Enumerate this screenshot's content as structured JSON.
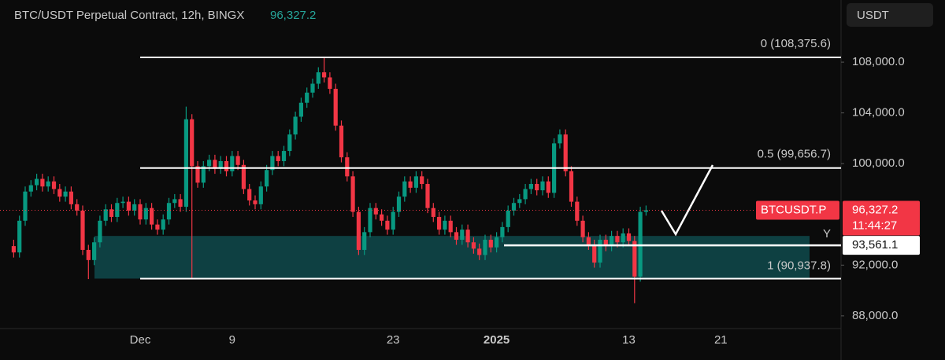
{
  "header": {
    "title": "BTC/USDT Perpetual Contract, 12h, BINGX",
    "price": "96,327.2",
    "currency_button": "USDT"
  },
  "chart_data": {
    "type": "candlestick",
    "categories": [
      null,
      null,
      null,
      null,
      null,
      null,
      null,
      null,
      null,
      null,
      null,
      null,
      null,
      null,
      null,
      null,
      null,
      null,
      null,
      null,
      null,
      null,
      "Dec",
      null,
      null,
      null,
      null,
      null,
      null,
      null,
      null,
      null,
      null,
      null,
      null,
      null,
      null,
      null,
      "9",
      null,
      null,
      null,
      null,
      null,
      null,
      null,
      null,
      null,
      null,
      null,
      null,
      null,
      null,
      null,
      null,
      null,
      null,
      null,
      null,
      null,
      null,
      null,
      null,
      null,
      null,
      null,
      "23",
      null,
      null,
      null,
      null,
      null,
      null,
      null,
      null,
      null,
      null,
      null,
      null,
      null,
      null,
      null,
      null,
      null,
      "2025",
      null,
      null,
      null,
      null,
      null,
      null,
      null,
      null,
      null,
      null,
      null,
      null,
      null,
      null,
      null,
      null,
      null,
      null,
      null,
      null,
      null,
      null,
      "13",
      null,
      null,
      null,
      null,
      null,
      null,
      null,
      null,
      null,
      null,
      null,
      null,
      null,
      null,
      null,
      "21"
    ],
    "values": [
      [
        93500,
        94000,
        92600,
        93000
      ],
      [
        93000,
        95900,
        92600,
        95500
      ],
      [
        95500,
        98200,
        95100,
        97800
      ],
      [
        97800,
        98700,
        97400,
        98300
      ],
      [
        98300,
        99200,
        97900,
        98800
      ],
      [
        98800,
        99200,
        97800,
        98200
      ],
      [
        98200,
        99000,
        97800,
        98600
      ],
      [
        98600,
        99000,
        97600,
        98000
      ],
      [
        98000,
        98400,
        97000,
        97400
      ],
      [
        97400,
        98200,
        97000,
        97800
      ],
      [
        97800,
        98200,
        96400,
        96800
      ],
      [
        96800,
        97200,
        95900,
        96300
      ],
      [
        96300,
        96700,
        92800,
        93200
      ],
      [
        93200,
        93600,
        90900,
        92400
      ],
      [
        92400,
        94200,
        92000,
        93800
      ],
      [
        93800,
        95900,
        93400,
        95500
      ],
      [
        95500,
        96800,
        95100,
        96400
      ],
      [
        96400,
        96800,
        95400,
        95800
      ],
      [
        95800,
        97300,
        95400,
        96900
      ],
      [
        96900,
        97400,
        96500,
        97000
      ],
      [
        97000,
        97400,
        95900,
        96300
      ],
      [
        96300,
        97200,
        95900,
        96800
      ],
      [
        96800,
        97200,
        95200,
        95600
      ],
      [
        95600,
        96900,
        95200,
        96500
      ],
      [
        96500,
        96900,
        94800,
        95200
      ],
      [
        95200,
        95600,
        94400,
        94800
      ],
      [
        94800,
        96000,
        94400,
        95600
      ],
      [
        95600,
        97300,
        95200,
        96900
      ],
      [
        96900,
        97600,
        96500,
        97200
      ],
      [
        97200,
        97600,
        96200,
        96600
      ],
      [
        96600,
        104500,
        96200,
        103500
      ],
      [
        103500,
        103900,
        91000,
        99800
      ],
      [
        99800,
        100200,
        98100,
        98500
      ],
      [
        98500,
        100200,
        98100,
        99800
      ],
      [
        99800,
        100700,
        99400,
        100300
      ],
      [
        100300,
        100700,
        99200,
        99600
      ],
      [
        99600,
        100600,
        99200,
        100200
      ],
      [
        100200,
        100600,
        99000,
        99400
      ],
      [
        99400,
        101000,
        99000,
        100600
      ],
      [
        100600,
        101000,
        99500,
        99900
      ],
      [
        99900,
        100300,
        97600,
        98000
      ],
      [
        98000,
        98400,
        96700,
        97100
      ],
      [
        97100,
        97500,
        96400,
        96800
      ],
      [
        96800,
        98600,
        96400,
        98200
      ],
      [
        98200,
        99900,
        97800,
        99500
      ],
      [
        99500,
        101000,
        99100,
        100600
      ],
      [
        100600,
        101000,
        99800,
        100200
      ],
      [
        100200,
        101400,
        99800,
        101000
      ],
      [
        101000,
        102700,
        100600,
        102300
      ],
      [
        102300,
        104100,
        101900,
        103700
      ],
      [
        103700,
        105200,
        103300,
        104800
      ],
      [
        104800,
        106000,
        104400,
        105600
      ],
      [
        105600,
        106700,
        105200,
        106300
      ],
      [
        106300,
        107600,
        105900,
        107200
      ],
      [
        107200,
        108375.6,
        106400,
        106800
      ],
      [
        106800,
        107200,
        105500,
        105900
      ],
      [
        105900,
        106300,
        102600,
        103000
      ],
      [
        103000,
        103400,
        100100,
        100500
      ],
      [
        100500,
        100900,
        98600,
        99000
      ],
      [
        99000,
        99400,
        95800,
        96200
      ],
      [
        96200,
        96600,
        92800,
        93200
      ],
      [
        93200,
        95000,
        92800,
        94600
      ],
      [
        94600,
        96900,
        94200,
        96500
      ],
      [
        96500,
        96900,
        95600,
        96000
      ],
      [
        96000,
        96400,
        95100,
        95500
      ],
      [
        95500,
        95900,
        94400,
        94800
      ],
      [
        94800,
        96600,
        94400,
        96200
      ],
      [
        96200,
        97800,
        95800,
        97400
      ],
      [
        97400,
        99000,
        97000,
        98600
      ],
      [
        98600,
        99000,
        97700,
        98100
      ],
      [
        98100,
        99400,
        97700,
        99000
      ],
      [
        99000,
        99400,
        98000,
        98400
      ],
      [
        98400,
        98800,
        96100,
        96500
      ],
      [
        96500,
        96900,
        95400,
        95800
      ],
      [
        95800,
        96200,
        94400,
        94800
      ],
      [
        94800,
        95900,
        94400,
        95500
      ],
      [
        95500,
        95900,
        94200,
        94600
      ],
      [
        94600,
        95000,
        93600,
        94000
      ],
      [
        94000,
        95200,
        93600,
        94800
      ],
      [
        94800,
        95200,
        93400,
        93800
      ],
      [
        93800,
        94200,
        92900,
        93300
      ],
      [
        93300,
        93700,
        92400,
        92800
      ],
      [
        92800,
        94400,
        92400,
        94000
      ],
      [
        94000,
        94400,
        93000,
        93400
      ],
      [
        93400,
        94600,
        93000,
        94200
      ],
      [
        94200,
        95400,
        93800,
        95000
      ],
      [
        95000,
        96700,
        94600,
        96300
      ],
      [
        96300,
        97300,
        95900,
        96900
      ],
      [
        96900,
        97600,
        96500,
        97200
      ],
      [
        97200,
        98400,
        96800,
        98000
      ],
      [
        98000,
        98800,
        97600,
        98400
      ],
      [
        98400,
        98800,
        97500,
        97900
      ],
      [
        97900,
        99000,
        97500,
        98600
      ],
      [
        98600,
        99000,
        97300,
        97700
      ],
      [
        97700,
        102000,
        97300,
        101600
      ],
      [
        101600,
        102700,
        101200,
        102300
      ],
      [
        102300,
        102700,
        99000,
        99400
      ],
      [
        99400,
        99800,
        96600,
        97000
      ],
      [
        97000,
        97400,
        95100,
        95500
      ],
      [
        95500,
        95900,
        93800,
        94200
      ],
      [
        94200,
        94600,
        93200,
        93600
      ],
      [
        93600,
        94000,
        91800,
        92200
      ],
      [
        92200,
        94400,
        91800,
        94000
      ],
      [
        94000,
        94400,
        93100,
        93500
      ],
      [
        93500,
        94700,
        93100,
        94300
      ],
      [
        94300,
        94700,
        93400,
        93800
      ],
      [
        93800,
        94900,
        93400,
        94500
      ],
      [
        94500,
        94900,
        93500,
        93900
      ],
      [
        93900,
        94300,
        89000,
        91100
      ],
      [
        91100,
        96600,
        90700,
        96200
      ],
      [
        96200,
        96700,
        95900,
        96327.2
      ],
      null,
      null,
      null,
      null,
      null,
      null,
      null,
      null,
      null,
      null,
      null,
      null,
      null
    ],
    "up_color": "#089981",
    "down_color": "#f23645",
    "ylim": [
      87000,
      112900
    ],
    "yticks": [
      {
        "value": 88000,
        "label": "88,000.0"
      },
      {
        "value": 92000,
        "label": "92,000.0"
      },
      {
        "value": 100000,
        "label": "100,000.0"
      },
      {
        "value": 104000,
        "label": "104,000.0"
      },
      {
        "value": 108000,
        "label": "108,000.0"
      }
    ],
    "levels": [
      {
        "value": 108375.6,
        "label": "0 (108,375.6)"
      },
      {
        "value": 99656.7,
        "label": "0.5 (99,656.7)"
      },
      {
        "value": 90937.8,
        "label": "1 (90,937.8)"
      }
    ],
    "zone": [
      90937.8,
      94300
    ],
    "support": {
      "value": 93561.1,
      "label": "93,561.1",
      "tag": "Y"
    },
    "last_price": {
      "value": 96327.2,
      "symbol": "BTCUSDT.P",
      "label": "96,327.2",
      "countdown": "11:44:27"
    }
  }
}
